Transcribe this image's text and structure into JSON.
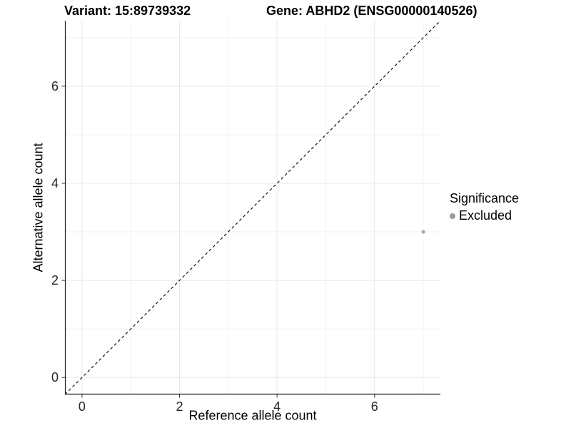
{
  "chart_data": {
    "type": "scatter",
    "titles": {
      "left": "Variant: 15:89739332",
      "right": "Gene: ABHD2 (ENSG00000140526)"
    },
    "xlabel": "Reference allele count",
    "ylabel": "Alternative allele count",
    "xlim": [
      -0.35,
      7.35
    ],
    "ylim": [
      -0.35,
      7.35
    ],
    "xticks": [
      0,
      2,
      4,
      6
    ],
    "yticks": [
      0,
      2,
      4,
      6
    ],
    "minor_xticks": [
      1,
      3,
      5,
      7
    ],
    "minor_yticks": [
      1,
      3,
      5,
      7
    ],
    "grid": true,
    "reference_line": {
      "type": "identity",
      "style": "dashed",
      "color": "#000000",
      "from": [
        -0.35,
        -0.35
      ],
      "to": [
        7.35,
        7.35
      ]
    },
    "series": [
      {
        "name": "Excluded",
        "color": "#aeaeae",
        "points": [
          {
            "x": 7,
            "y": 3
          }
        ]
      }
    ],
    "legend": {
      "title": "Significance",
      "position": "right",
      "items": [
        {
          "label": "Excluded",
          "color": "#9a9a9a"
        }
      ]
    },
    "colors": {
      "axis_line": "#1a1a1a",
      "tick_mark": "#333333",
      "major_grid": "#e8e8e8",
      "minor_grid": "#f2f2f2",
      "background": "#ffffff"
    }
  }
}
